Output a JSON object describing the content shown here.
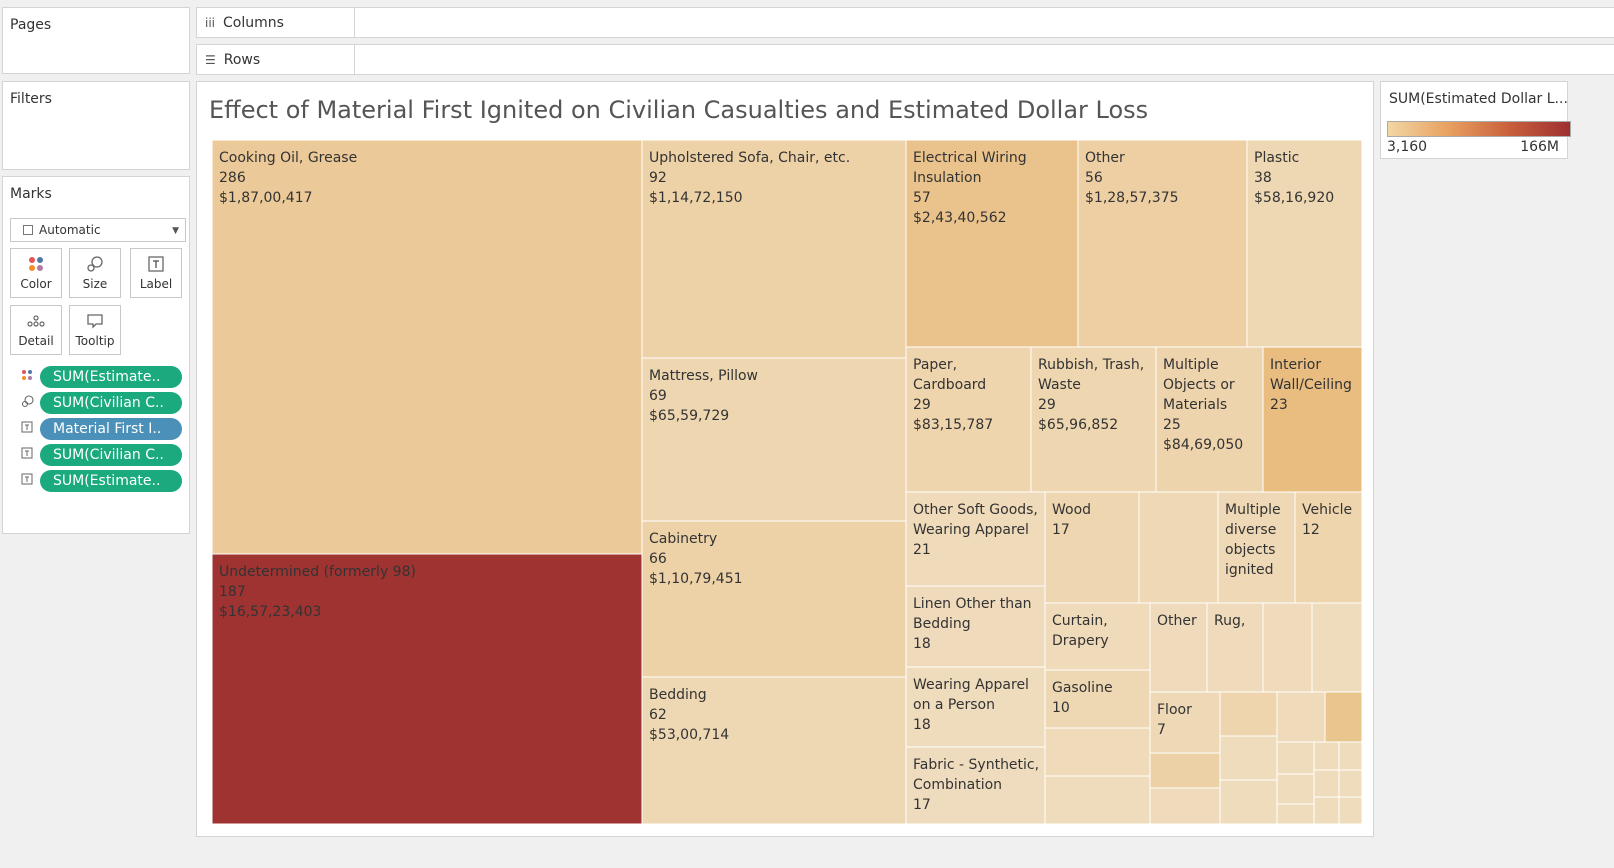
{
  "shelves": {
    "pages": "Pages",
    "columns": "Columns",
    "rows": "Rows",
    "filters": "Filters",
    "marks": "Marks",
    "columns_icon": "iii",
    "rows_icon": "☰"
  },
  "marks_card": {
    "mark_type": "Automatic",
    "buttons": [
      {
        "label": "Color",
        "icon": "color-icon"
      },
      {
        "label": "Size",
        "icon": "size-icon"
      },
      {
        "label": "Label",
        "icon": "label-icon"
      },
      {
        "label": "Detail",
        "icon": "detail-icon"
      },
      {
        "label": "Tooltip",
        "icon": "tooltip-icon"
      }
    ],
    "pills": [
      {
        "label": "SUM(Estimate..",
        "icon": "color-icon",
        "color": "#1aaa7d"
      },
      {
        "label": "SUM(Civilian C..",
        "icon": "size-icon",
        "color": "#1aaa7d"
      },
      {
        "label": "Material First I..",
        "icon": "label-icon",
        "color": "#4a90b8"
      },
      {
        "label": "SUM(Civilian C..",
        "icon": "label-icon",
        "color": "#1aaa7d"
      },
      {
        "label": "SUM(Estimate..",
        "icon": "label-icon",
        "color": "#1aaa7d"
      }
    ]
  },
  "legend": {
    "title": "SUM(Estimated Dollar L...",
    "min_label": "3,160",
    "max_label": "166M"
  },
  "chart_data": {
    "type": "treemap",
    "title": "Effect of Material First Ignited on Civilian Casualties and Estimated Dollar Loss",
    "size_measure": "SUM(Civilian Casualties)",
    "color_measure": "SUM(Estimated Dollar Loss)",
    "items": [
      {
        "name": "Cooking Oil, Grease",
        "casualties": 286,
        "loss": "$1,87,00,417",
        "color": "#ecc998"
      },
      {
        "name": "Undetermined (formerly 98)",
        "casualties": 187,
        "loss": "$16,57,23,403",
        "color": "#9e3332"
      },
      {
        "name": "Upholstered Sofa, Chair, etc.",
        "casualties": 92,
        "loss": "$1,14,72,150",
        "color": "#edd1a7"
      },
      {
        "name": "Mattress, Pillow",
        "casualties": 69,
        "loss": "$65,59,729",
        "color": "#eed6b1"
      },
      {
        "name": "Cabinetry",
        "casualties": 66,
        "loss": "$1,10,79,451",
        "color": "#edd2a8"
      },
      {
        "name": "Bedding",
        "casualties": 62,
        "loss": "$53,00,714",
        "color": "#eed8b4"
      },
      {
        "name": "Electrical Wiring Insulation",
        "casualties": 57,
        "loss": "$2,43,40,562",
        "color": "#eac38c"
      },
      {
        "name": "Other",
        "casualties": 56,
        "loss": "$1,28,57,375",
        "color": "#edcfa3"
      },
      {
        "name": "Plastic",
        "casualties": 38,
        "loss": "$58,16,920",
        "color": "#eed7b3"
      },
      {
        "name": "Paper, Cardboard",
        "casualties": 29,
        "loss": "$83,15,787",
        "color": "#eed5ae"
      },
      {
        "name": "Rubbish, Trash, Waste",
        "casualties": 29,
        "loss": "$65,96,852",
        "color": "#eed6b1"
      },
      {
        "name": "Multiple Objects or Materials",
        "casualties": 25,
        "loss": "$84,69,050",
        "color": "#eed4ad"
      },
      {
        "name": "Interior Wall/Ceiling",
        "casualties": 23,
        "loss": "",
        "color": "#e9bd80"
      },
      {
        "name": "Other Soft Goods, Wearing Apparel",
        "casualties": 21,
        "loss": "",
        "color": "#efdab9"
      },
      {
        "name": "Wood",
        "casualties": 17,
        "loss": "",
        "color": "#eed6b1"
      },
      {
        "name": "Multiple diverse objects ignited",
        "casualties": null,
        "loss": "",
        "color": "#eed8b5"
      },
      {
        "name": "Vehicle",
        "casualties": 12,
        "loss": "",
        "color": "#eed5ae"
      },
      {
        "name": "Linen Other than Bedding",
        "casualties": 18,
        "loss": "",
        "color": "#efdbbc"
      },
      {
        "name": "Wearing Apparel on a Person",
        "casualties": 18,
        "loss": "",
        "color": "#efdcbd"
      },
      {
        "name": "Fabric - Synthetic, Combination",
        "casualties": 17,
        "loss": "",
        "color": "#efdcbe"
      },
      {
        "name": "Curtain, Drapery",
        "casualties": null,
        "loss": "",
        "color": "#efdab9"
      },
      {
        "name": "Other",
        "casualties": null,
        "loss": "",
        "color": "#efdbbb"
      },
      {
        "name": "Rug,",
        "casualties": null,
        "loss": "",
        "color": "#efdbbb"
      },
      {
        "name": "Gasoline",
        "casualties": 10,
        "loss": "",
        "color": "#eed7b3"
      },
      {
        "name": "Floor",
        "casualties": 7,
        "loss": "",
        "color": "#eed8b5"
      }
    ]
  }
}
